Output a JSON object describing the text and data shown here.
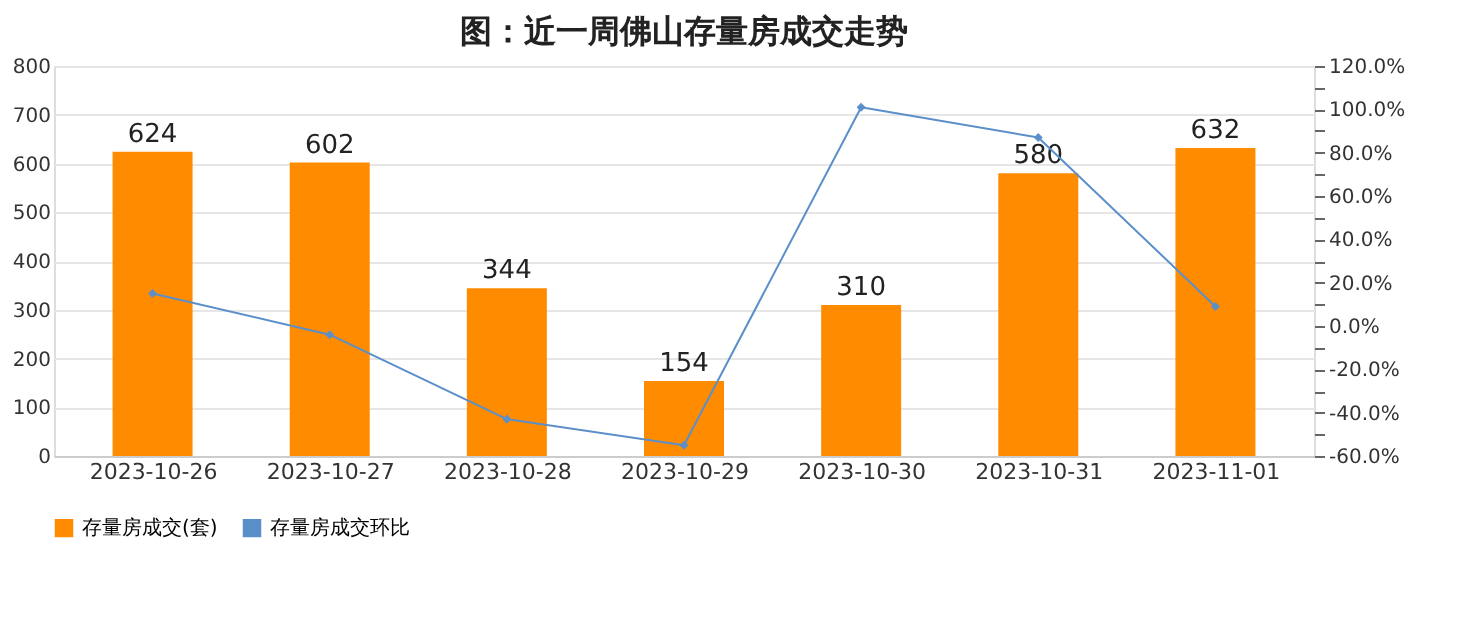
{
  "chart_data": {
    "type": "bar",
    "title": "图：近一周佛山存量房成交走势",
    "categories": [
      "2023-10-26",
      "2023-10-27",
      "2023-10-28",
      "2023-10-29",
      "2023-10-30",
      "2023-10-31",
      "2023-11-01"
    ],
    "series": [
      {
        "name": "存量房成交(套)",
        "color": "#ff8c00",
        "values": [
          624,
          602,
          344,
          154,
          310,
          580,
          632
        ],
        "value_labels": [
          "624",
          "602",
          "344",
          "154",
          "310",
          "580",
          "632"
        ]
      },
      {
        "name": "存量房成交环比",
        "type": "line",
        "axis": "y2",
        "color": "#5b8fc9",
        "marker": "diamond",
        "values": [
          15,
          -4,
          -43,
          -55,
          101,
          87,
          9
        ]
      }
    ],
    "ylim": [
      0,
      800
    ],
    "yticks": [
      0,
      100,
      200,
      300,
      400,
      500,
      600,
      700,
      800
    ],
    "y2lim": [
      -60,
      120
    ],
    "y2ticks": [
      {
        "value": -60,
        "label": "-60.0%"
      },
      {
        "value": -50,
        "label": null
      },
      {
        "value": -40,
        "label": "-40.0%"
      },
      {
        "value": -30,
        "label": null
      },
      {
        "value": -20,
        "label": "-20.0%"
      },
      {
        "value": -10,
        "label": null
      },
      {
        "value": 0,
        "label": "0.0%"
      },
      {
        "value": 10,
        "label": null
      },
      {
        "value": 20,
        "label": "20.0%"
      },
      {
        "value": 30,
        "label": null
      },
      {
        "value": 40,
        "label": "40.0%"
      },
      {
        "value": 50,
        "label": null
      },
      {
        "value": 60,
        "label": "60.0%"
      },
      {
        "value": 70,
        "label": null
      },
      {
        "value": 80,
        "label": "80.0%"
      },
      {
        "value": 90,
        "label": null
      },
      {
        "value": 100,
        "label": "100.0%"
      },
      {
        "value": 110,
        "label": null
      },
      {
        "value": 120,
        "label": "120.0%"
      }
    ],
    "grid": "y",
    "legend": "bottom"
  }
}
